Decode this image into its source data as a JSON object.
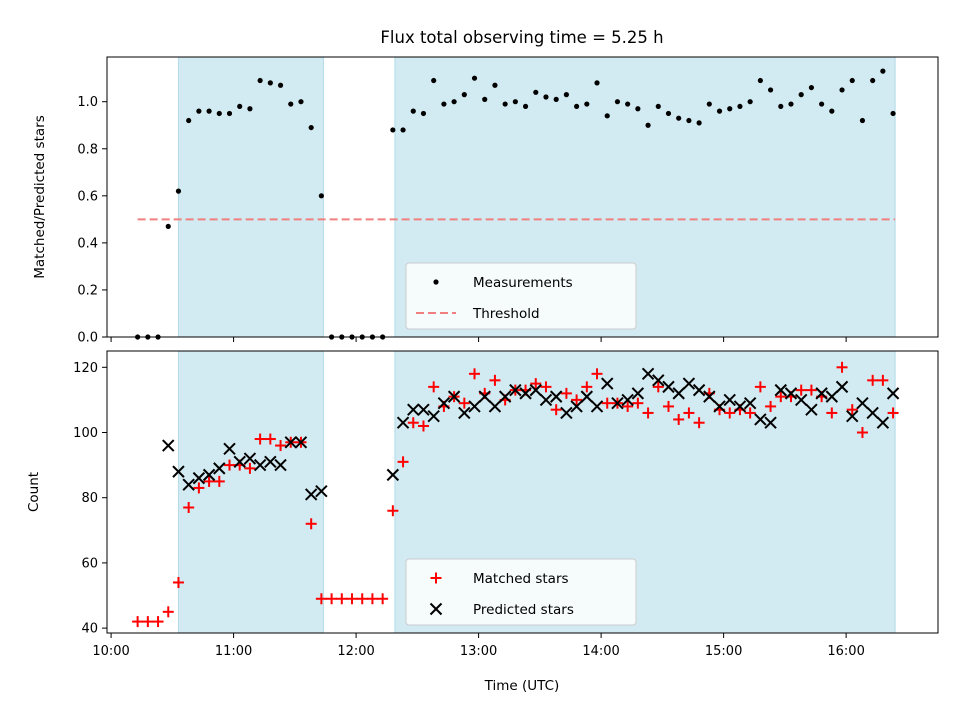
{
  "chart_data": {
    "title": "Flux total observing time = 5.25 h",
    "xlabel": "Time (UTC)",
    "x_ticks": [
      "10:00",
      "11:00",
      "12:00",
      "13:00",
      "14:00",
      "15:00",
      "16:00"
    ],
    "x_range": [
      "09:58",
      "16:45"
    ],
    "shaded_intervals": [
      [
        "10:33",
        "11:44"
      ],
      [
        "12:19",
        "16:24"
      ]
    ],
    "shade_color": "#add8e6",
    "panels": [
      {
        "type": "scatter",
        "ylabel": "Matched/Predicted stars",
        "ylim": [
          0,
          1.19
        ],
        "y_ticks": [
          0.0,
          0.2,
          0.4,
          0.6,
          0.8,
          1.0
        ],
        "legend_position": "lower-center",
        "series": [
          {
            "name": "Measurements",
            "marker": "dot",
            "color": "#000000",
            "points": [
              [
                "10:13",
                0.0
              ],
              [
                "10:18",
                0.0
              ],
              [
                "10:23",
                0.0
              ],
              [
                "10:28",
                0.47
              ],
              [
                "10:33",
                0.62
              ],
              [
                "10:38",
                0.92
              ],
              [
                "10:43",
                0.96
              ],
              [
                "10:48",
                0.96
              ],
              [
                "10:53",
                0.95
              ],
              [
                "10:58",
                0.95
              ],
              [
                "11:03",
                0.98
              ],
              [
                "11:08",
                0.97
              ],
              [
                "11:13",
                1.09
              ],
              [
                "11:18",
                1.08
              ],
              [
                "11:23",
                1.07
              ],
              [
                "11:28",
                0.99
              ],
              [
                "11:33",
                1.0
              ],
              [
                "11:38",
                0.89
              ],
              [
                "11:43",
                0.6
              ],
              [
                "11:48",
                0.0
              ],
              [
                "11:53",
                0.0
              ],
              [
                "11:58",
                0.0
              ],
              [
                "12:03",
                0.0
              ],
              [
                "12:08",
                0.0
              ],
              [
                "12:13",
                0.0
              ],
              [
                "12:18",
                0.88
              ],
              [
                "12:23",
                0.88
              ],
              [
                "12:28",
                0.96
              ],
              [
                "12:33",
                0.95
              ],
              [
                "12:38",
                1.09
              ],
              [
                "12:43",
                0.99
              ],
              [
                "12:48",
                1.0
              ],
              [
                "12:53",
                1.03
              ],
              [
                "12:58",
                1.1
              ],
              [
                "13:03",
                1.01
              ],
              [
                "13:08",
                1.07
              ],
              [
                "13:13",
                0.99
              ],
              [
                "13:18",
                1.0
              ],
              [
                "13:23",
                0.98
              ],
              [
                "13:28",
                1.04
              ],
              [
                "13:33",
                1.02
              ],
              [
                "13:38",
                1.01
              ],
              [
                "13:43",
                1.03
              ],
              [
                "13:48",
                0.98
              ],
              [
                "13:53",
                0.99
              ],
              [
                "13:58",
                1.08
              ],
              [
                "14:03",
                0.94
              ],
              [
                "14:08",
                1.0
              ],
              [
                "14:13",
                0.99
              ],
              [
                "14:18",
                0.97
              ],
              [
                "14:23",
                0.9
              ],
              [
                "14:28",
                0.98
              ],
              [
                "14:33",
                0.95
              ],
              [
                "14:38",
                0.93
              ],
              [
                "14:43",
                0.92
              ],
              [
                "14:48",
                0.91
              ],
              [
                "14:53",
                0.99
              ],
              [
                "14:58",
                0.96
              ],
              [
                "15:03",
                0.97
              ],
              [
                "15:08",
                0.98
              ],
              [
                "15:13",
                1.0
              ],
              [
                "15:18",
                1.09
              ],
              [
                "15:23",
                1.05
              ],
              [
                "15:28",
                0.98
              ],
              [
                "15:33",
                0.99
              ],
              [
                "15:38",
                1.03
              ],
              [
                "15:43",
                1.06
              ],
              [
                "15:48",
                0.99
              ],
              [
                "15:53",
                0.96
              ],
              [
                "15:58",
                1.05
              ],
              [
                "16:03",
                1.09
              ],
              [
                "16:08",
                0.92
              ],
              [
                "16:13",
                1.09
              ],
              [
                "16:18",
                1.13
              ],
              [
                "16:23",
                0.95
              ]
            ]
          },
          {
            "name": "Threshold",
            "marker": "dashed-line",
            "color": "#f08080",
            "points": [
              [
                "10:13",
                0.5
              ],
              [
                "16:24",
                0.5
              ]
            ]
          }
        ]
      },
      {
        "type": "scatter",
        "ylabel": "Count",
        "ylim": [
          38.5,
          125
        ],
        "y_ticks": [
          40,
          60,
          80,
          100,
          120
        ],
        "legend_position": "lower-center",
        "series": [
          {
            "name": "Matched stars",
            "marker": "plus",
            "color": "#ff0000",
            "points": [
              [
                "10:13",
                42
              ],
              [
                "10:18",
                42
              ],
              [
                "10:23",
                42
              ],
              [
                "10:28",
                45
              ],
              [
                "10:33",
                54
              ],
              [
                "10:38",
                77
              ],
              [
                "10:43",
                83
              ],
              [
                "10:48",
                85
              ],
              [
                "10:53",
                85
              ],
              [
                "10:58",
                90
              ],
              [
                "11:03",
                90
              ],
              [
                "11:08",
                89
              ],
              [
                "11:13",
                98
              ],
              [
                "11:18",
                98
              ],
              [
                "11:23",
                96
              ],
              [
                "11:28",
                97
              ],
              [
                "11:33",
                97
              ],
              [
                "11:38",
                72
              ],
              [
                "11:43",
                49
              ],
              [
                "11:48",
                49
              ],
              [
                "11:53",
                49
              ],
              [
                "11:58",
                49
              ],
              [
                "12:03",
                49
              ],
              [
                "12:08",
                49
              ],
              [
                "12:13",
                49
              ],
              [
                "12:18",
                76
              ],
              [
                "12:23",
                91
              ],
              [
                "12:28",
                103
              ],
              [
                "12:33",
                102
              ],
              [
                "12:38",
                114
              ],
              [
                "12:43",
                108
              ],
              [
                "12:48",
                111
              ],
              [
                "12:53",
                109
              ],
              [
                "12:58",
                118
              ],
              [
                "13:03",
                112
              ],
              [
                "13:08",
                116
              ],
              [
                "13:13",
                110
              ],
              [
                "13:18",
                113
              ],
              [
                "13:23",
                113
              ],
              [
                "13:28",
                115
              ],
              [
                "13:33",
                114
              ],
              [
                "13:38",
                107
              ],
              [
                "13:43",
                112
              ],
              [
                "13:48",
                110
              ],
              [
                "13:53",
                114
              ],
              [
                "13:58",
                118
              ],
              [
                "14:03",
                109
              ],
              [
                "14:08",
                109
              ],
              [
                "14:13",
                108
              ],
              [
                "14:18",
                109
              ],
              [
                "14:23",
                106
              ],
              [
                "14:28",
                114
              ],
              [
                "14:33",
                108
              ],
              [
                "14:38",
                104
              ],
              [
                "14:43",
                106
              ],
              [
                "14:48",
                103
              ],
              [
                "14:53",
                112
              ],
              [
                "14:58",
                107
              ],
              [
                "15:03",
                106
              ],
              [
                "15:08",
                107
              ],
              [
                "15:13",
                106
              ],
              [
                "15:18",
                114
              ],
              [
                "15:23",
                108
              ],
              [
                "15:28",
                111
              ],
              [
                "15:33",
                111
              ],
              [
                "15:38",
                113
              ],
              [
                "15:43",
                113
              ],
              [
                "15:48",
                111
              ],
              [
                "15:53",
                106
              ],
              [
                "15:58",
                120
              ],
              [
                "16:03",
                107
              ],
              [
                "16:08",
                100
              ],
              [
                "16:13",
                116
              ],
              [
                "16:18",
                116
              ],
              [
                "16:23",
                106
              ]
            ]
          },
          {
            "name": "Predicted stars",
            "marker": "x",
            "color": "#000000",
            "points": [
              [
                "10:28",
                96
              ],
              [
                "10:33",
                88
              ],
              [
                "10:38",
                84
              ],
              [
                "10:43",
                86
              ],
              [
                "10:48",
                87
              ],
              [
                "10:53",
                89
              ],
              [
                "10:58",
                95
              ],
              [
                "11:03",
                91
              ],
              [
                "11:08",
                92
              ],
              [
                "11:13",
                90
              ],
              [
                "11:18",
                91
              ],
              [
                "11:23",
                90
              ],
              [
                "11:28",
                97
              ],
              [
                "11:33",
                97
              ],
              [
                "11:38",
                81
              ],
              [
                "11:43",
                82
              ],
              [
                "12:18",
                87
              ],
              [
                "12:23",
                103
              ],
              [
                "12:28",
                107
              ],
              [
                "12:33",
                107
              ],
              [
                "12:38",
                105
              ],
              [
                "12:43",
                109
              ],
              [
                "12:48",
                111
              ],
              [
                "12:53",
                106
              ],
              [
                "12:58",
                108
              ],
              [
                "13:03",
                111
              ],
              [
                "13:08",
                108
              ],
              [
                "13:13",
                111
              ],
              [
                "13:18",
                113
              ],
              [
                "13:23",
                112
              ],
              [
                "13:28",
                113
              ],
              [
                "13:33",
                110
              ],
              [
                "13:38",
                111
              ],
              [
                "13:43",
                106
              ],
              [
                "13:48",
                108
              ],
              [
                "13:53",
                111
              ],
              [
                "13:58",
                108
              ],
              [
                "14:03",
                115
              ],
              [
                "14:08",
                109
              ],
              [
                "14:13",
                110
              ],
              [
                "14:18",
                112
              ],
              [
                "14:23",
                118
              ],
              [
                "14:28",
                116
              ],
              [
                "14:33",
                114
              ],
              [
                "14:38",
                112
              ],
              [
                "14:43",
                115
              ],
              [
                "14:48",
                113
              ],
              [
                "14:53",
                111
              ],
              [
                "14:58",
                108
              ],
              [
                "15:03",
                110
              ],
              [
                "15:08",
                108
              ],
              [
                "15:13",
                109
              ],
              [
                "15:18",
                104
              ],
              [
                "15:23",
                103
              ],
              [
                "15:28",
                113
              ],
              [
                "15:33",
                112
              ],
              [
                "15:38",
                110
              ],
              [
                "15:43",
                107
              ],
              [
                "15:48",
                112
              ],
              [
                "15:53",
                111
              ],
              [
                "15:58",
                114
              ],
              [
                "16:03",
                105
              ],
              [
                "16:08",
                109
              ],
              [
                "16:13",
                106
              ],
              [
                "16:18",
                103
              ],
              [
                "16:23",
                112
              ]
            ]
          }
        ]
      }
    ]
  }
}
